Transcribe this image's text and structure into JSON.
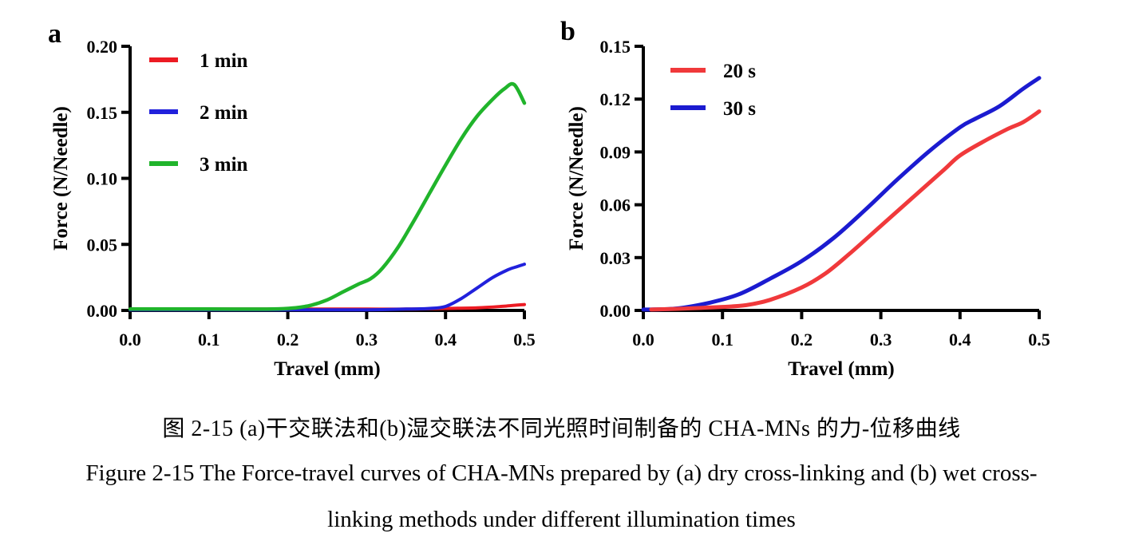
{
  "panels": [
    {
      "letter": "a"
    },
    {
      "letter": "b"
    }
  ],
  "caption": {
    "zh": "图 2-15 (a)干交联法和(b)湿交联法不同光照时间制备的 CHA-MNs 的力-位移曲线",
    "en_line1": "Figure 2-15 The Force-travel curves of CHA-MNs prepared by (a) dry cross-linking and (b) wet cross-",
    "en_line2": "linking methods under different illumination times"
  },
  "chart_data": [
    {
      "type": "line",
      "panel": "a",
      "title": "",
      "xlabel": "Travel (mm)",
      "ylabel": "Force (N/Needle)",
      "xlim": [
        0,
        0.5
      ],
      "ylim": [
        0,
        0.2
      ],
      "xticks": [
        "0.0",
        "0.1",
        "0.2",
        "0.3",
        "0.4",
        "0.5"
      ],
      "yticks": [
        "0.00",
        "0.05",
        "0.10",
        "0.15",
        "0.20"
      ],
      "grid": false,
      "legend_position": "upper-left-inside",
      "axis_color": "#000000",
      "series": [
        {
          "name": "1 min",
          "color": "#EC1B23",
          "stroke_width": 4,
          "points": [
            [
              0,
              0.001
            ],
            [
              0.05,
              0.001
            ],
            [
              0.1,
              0.001
            ],
            [
              0.15,
              0.001
            ],
            [
              0.2,
              0.001
            ],
            [
              0.25,
              0.001
            ],
            [
              0.3,
              0.001
            ],
            [
              0.35,
              0.001
            ],
            [
              0.4,
              0.0015
            ],
            [
              0.44,
              0.002
            ],
            [
              0.47,
              0.003
            ],
            [
              0.5,
              0.0045
            ]
          ]
        },
        {
          "name": "2 min",
          "color": "#2121DC",
          "stroke_width": 4,
          "points": [
            [
              0,
              0.0005
            ],
            [
              0.1,
              0.0005
            ],
            [
              0.2,
              0.0005
            ],
            [
              0.3,
              0.0005
            ],
            [
              0.35,
              0.001
            ],
            [
              0.38,
              0.0015
            ],
            [
              0.4,
              0.003
            ],
            [
              0.42,
              0.009
            ],
            [
              0.44,
              0.017
            ],
            [
              0.46,
              0.025
            ],
            [
              0.48,
              0.031
            ],
            [
              0.49,
              0.033
            ],
            [
              0.5,
              0.035
            ]
          ]
        },
        {
          "name": "3 min",
          "color": "#20B42B",
          "stroke_width": 4.5,
          "points": [
            [
              0,
              0.001
            ],
            [
              0.1,
              0.001
            ],
            [
              0.18,
              0.001
            ],
            [
              0.21,
              0.002
            ],
            [
              0.23,
              0.004
            ],
            [
              0.25,
              0.008
            ],
            [
              0.27,
              0.014
            ],
            [
              0.29,
              0.02
            ],
            [
              0.305,
              0.024
            ],
            [
              0.32,
              0.032
            ],
            [
              0.34,
              0.048
            ],
            [
              0.36,
              0.068
            ],
            [
              0.38,
              0.089
            ],
            [
              0.4,
              0.11
            ],
            [
              0.42,
              0.13
            ],
            [
              0.44,
              0.147
            ],
            [
              0.46,
              0.16
            ],
            [
              0.475,
              0.168
            ],
            [
              0.487,
              0.171
            ],
            [
              0.5,
              0.157
            ]
          ]
        }
      ]
    },
    {
      "type": "line",
      "panel": "b",
      "title": "",
      "xlabel": "Travel (mm)",
      "ylabel": "Force (N/Needle)",
      "xlim": [
        0,
        0.5
      ],
      "ylim": [
        0,
        0.15
      ],
      "xticks": [
        "0.0",
        "0.1",
        "0.2",
        "0.3",
        "0.4",
        "0.5"
      ],
      "yticks": [
        "0.00",
        "0.03",
        "0.06",
        "0.09",
        "0.12",
        "0.15"
      ],
      "grid": false,
      "legend_position": "upper-left-inside",
      "axis_color": "#000000",
      "series": [
        {
          "name": "30 s",
          "color": "#1B1BD0",
          "stroke_width": 5,
          "points": [
            [
              0,
              0.0005
            ],
            [
              0.04,
              0.001
            ],
            [
              0.08,
              0.004
            ],
            [
              0.12,
              0.009
            ],
            [
              0.16,
              0.018
            ],
            [
              0.2,
              0.028
            ],
            [
              0.24,
              0.041
            ],
            [
              0.28,
              0.057
            ],
            [
              0.32,
              0.074
            ],
            [
              0.36,
              0.09
            ],
            [
              0.4,
              0.104
            ],
            [
              0.42,
              0.109
            ],
            [
              0.45,
              0.116
            ],
            [
              0.48,
              0.126
            ],
            [
              0.5,
              0.132
            ]
          ]
        },
        {
          "name": "20 s",
          "color": "#F0393B",
          "stroke_width": 5,
          "points": [
            [
              0.01,
              0.0005
            ],
            [
              0.05,
              0.001
            ],
            [
              0.1,
              0.002
            ],
            [
              0.13,
              0.003
            ],
            [
              0.16,
              0.006
            ],
            [
              0.2,
              0.013
            ],
            [
              0.23,
              0.021
            ],
            [
              0.26,
              0.032
            ],
            [
              0.3,
              0.048
            ],
            [
              0.34,
              0.064
            ],
            [
              0.38,
              0.08
            ],
            [
              0.4,
              0.088
            ],
            [
              0.43,
              0.096
            ],
            [
              0.46,
              0.103
            ],
            [
              0.48,
              0.107
            ],
            [
              0.5,
              0.113
            ]
          ]
        }
      ],
      "legend_order": [
        "20 s",
        "30 s"
      ]
    }
  ]
}
